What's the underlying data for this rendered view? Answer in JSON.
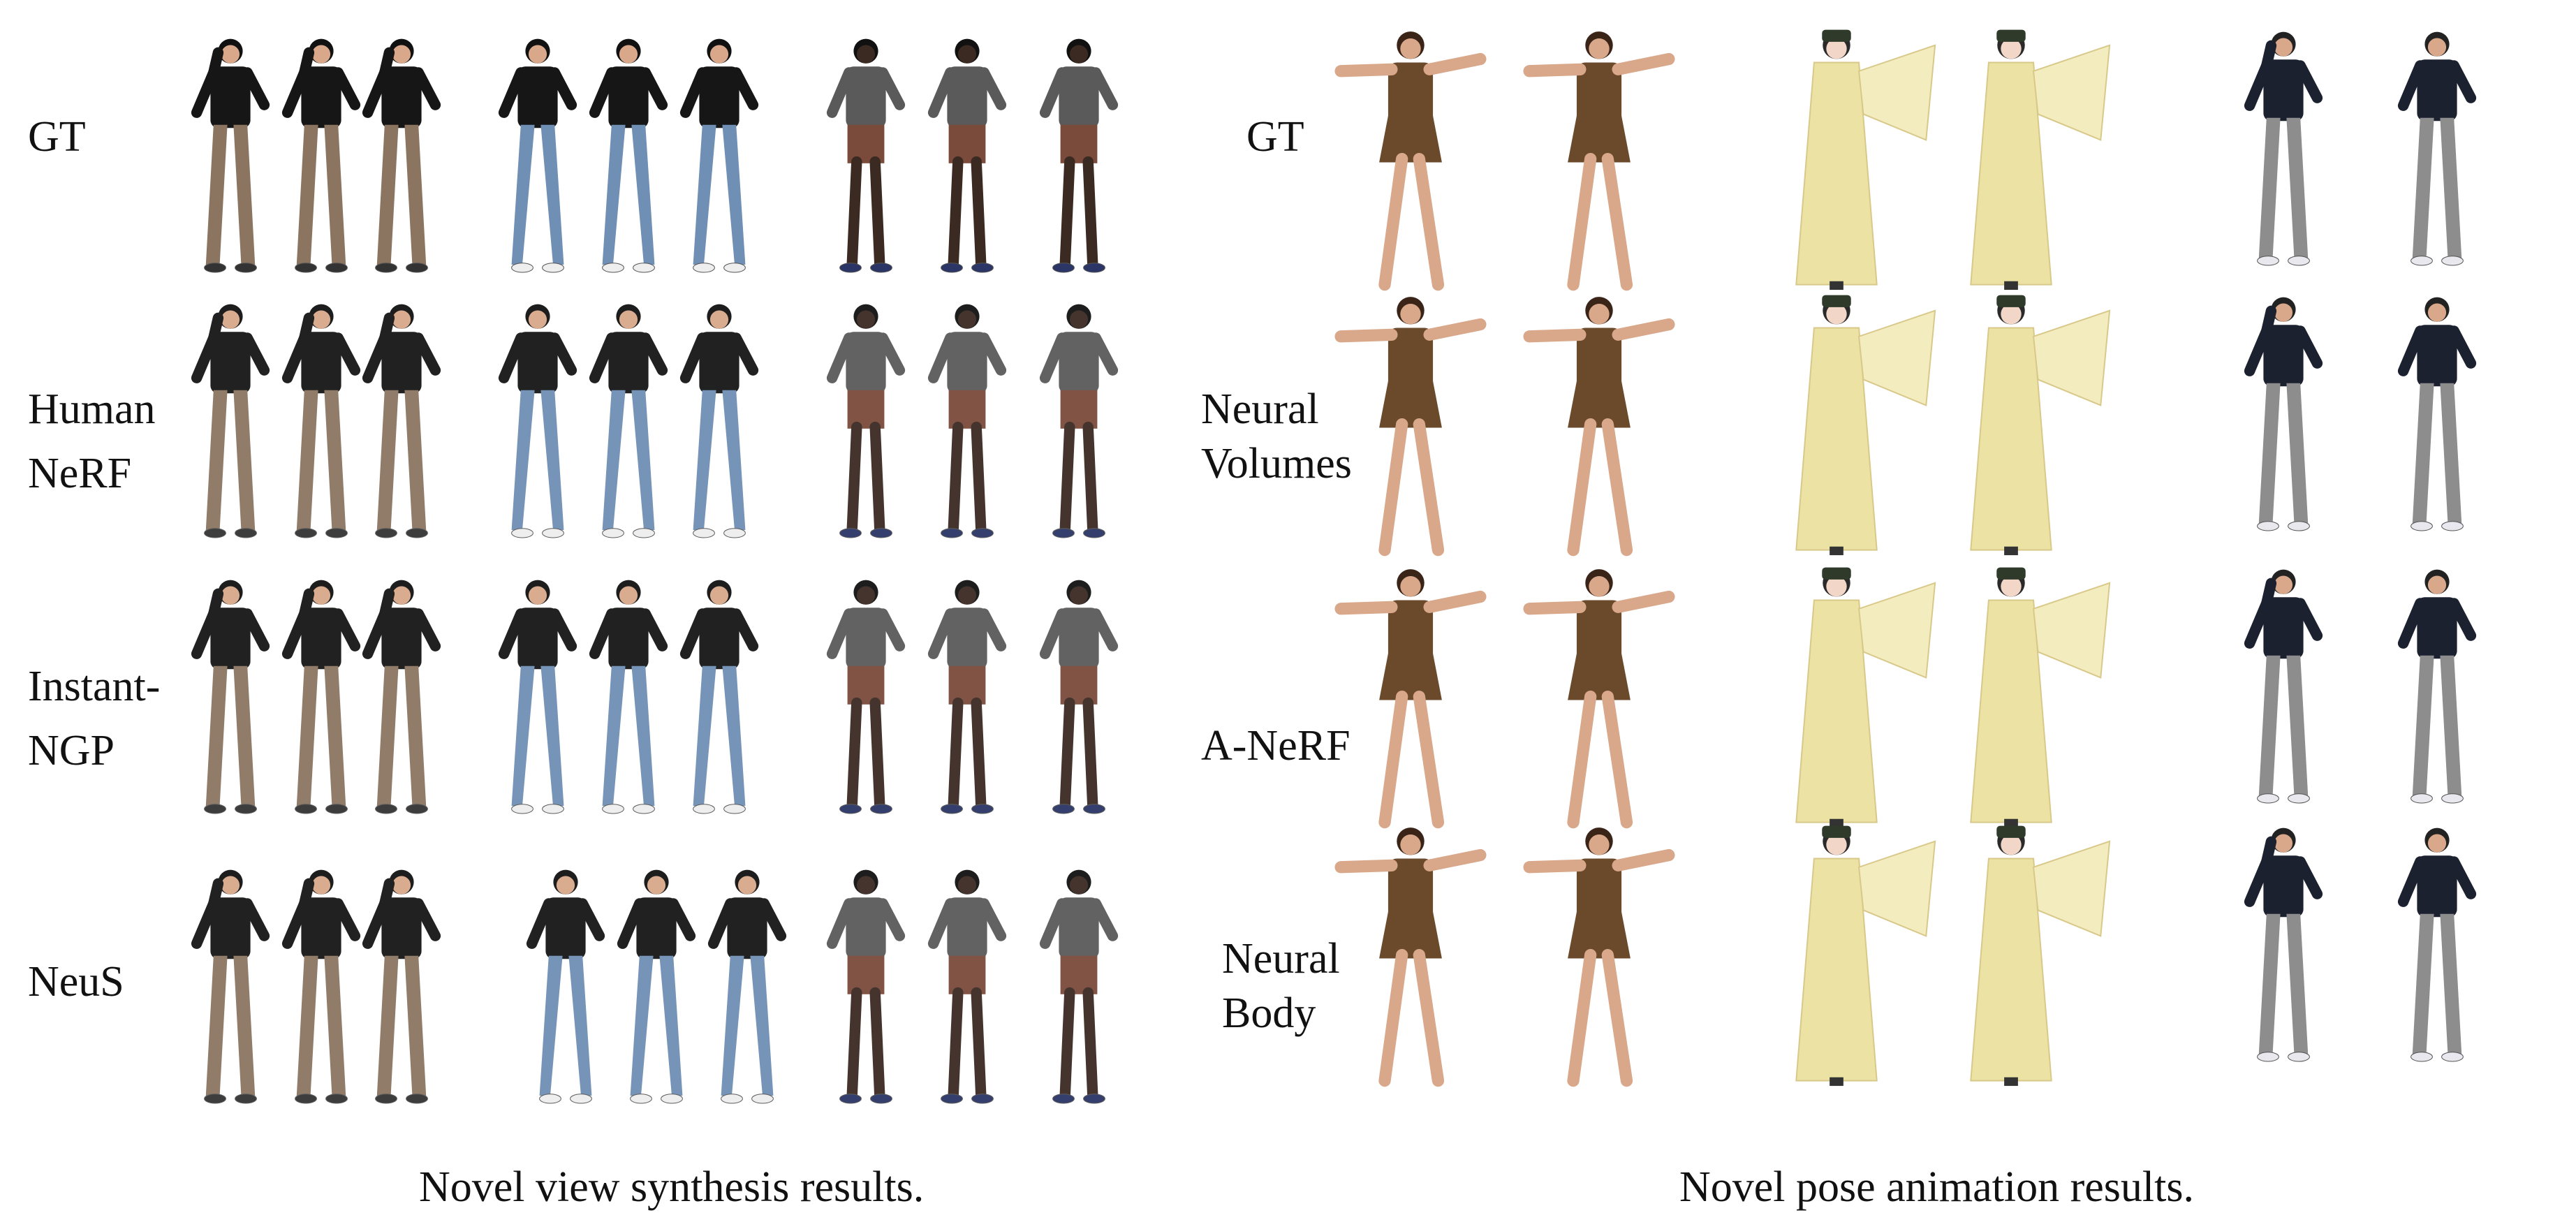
{
  "left_panel": {
    "row_labels": [
      [
        "GT"
      ],
      [
        "Human",
        "NeRF"
      ],
      [
        "Instant-",
        "NGP"
      ],
      [
        "NeuS"
      ]
    ],
    "caption": "Novel view synthesis results."
  },
  "right_panel": {
    "row_labels": [
      [
        "GT"
      ],
      [
        "Neural",
        "Volumes"
      ],
      [
        "A-NeRF"
      ],
      [
        "Neural",
        "Body"
      ]
    ],
    "caption": "Novel pose animation results."
  },
  "palette": {
    "skin_dark": "#3a2a22",
    "skin_light": "#d9a88a",
    "black_top": "#161616",
    "khaki": "#8b7560",
    "jeans": "#6f8fb5",
    "grey_shirt": "#5a5a5a",
    "camo": "#7a4a3a",
    "leopard": "#6b4a2b",
    "yellow_robe": "#ece2a3",
    "navy_hoodie": "#1c2130",
    "grey_pants": "#8d8d8d",
    "shoe": "#e8e8ee"
  }
}
